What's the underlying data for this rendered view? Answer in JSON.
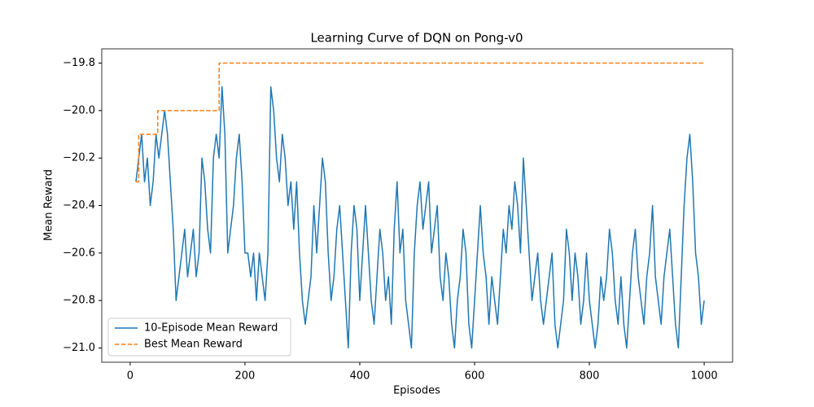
{
  "chart_data": {
    "type": "line",
    "title": "Learning Curve of DQN on Pong-v0",
    "x_label": "Episodes",
    "y_label": "Mean Reward",
    "xlim": [
      -49.5,
      1049.5
    ],
    "ylim": [
      -21.06,
      -19.74
    ],
    "xticks": [
      0,
      200,
      400,
      600,
      800,
      1000
    ],
    "yticks": [
      {
        "value": -21.0,
        "label": "−21.0"
      },
      {
        "value": -20.8,
        "label": "−20.8"
      },
      {
        "value": -20.6,
        "label": "−20.6"
      },
      {
        "value": -20.4,
        "label": "−20.4"
      },
      {
        "value": -20.2,
        "label": "−20.2"
      },
      {
        "value": -20.0,
        "label": "−20.0"
      },
      {
        "value": -19.8,
        "label": "−19.8"
      }
    ],
    "grid": false,
    "legend": "lower left",
    "series": [
      {
        "name": "10-Episode Mean Reward",
        "color": "#1f77b4",
        "dash": "solid",
        "x": [
          10,
          15,
          20,
          25,
          30,
          35,
          40,
          45,
          50,
          55,
          60,
          65,
          70,
          75,
          80,
          85,
          90,
          95,
          100,
          105,
          110,
          115,
          120,
          125,
          130,
          135,
          140,
          145,
          150,
          155,
          160,
          165,
          170,
          175,
          180,
          185,
          190,
          195,
          200,
          205,
          210,
          215,
          220,
          225,
          230,
          235,
          240,
          245,
          250,
          255,
          260,
          265,
          270,
          275,
          280,
          285,
          290,
          295,
          300,
          305,
          310,
          315,
          320,
          325,
          330,
          335,
          340,
          345,
          350,
          355,
          360,
          365,
          370,
          375,
          380,
          385,
          390,
          395,
          400,
          405,
          410,
          415,
          420,
          425,
          430,
          435,
          440,
          445,
          450,
          455,
          460,
          465,
          470,
          475,
          480,
          485,
          490,
          495,
          500,
          505,
          510,
          515,
          520,
          525,
          530,
          535,
          540,
          545,
          550,
          555,
          560,
          565,
          570,
          575,
          580,
          585,
          590,
          595,
          600,
          605,
          610,
          615,
          620,
          625,
          630,
          635,
          640,
          645,
          650,
          655,
          660,
          665,
          670,
          675,
          680,
          685,
          690,
          695,
          700,
          705,
          710,
          715,
          720,
          725,
          730,
          735,
          740,
          745,
          750,
          755,
          760,
          765,
          770,
          775,
          780,
          785,
          790,
          795,
          800,
          805,
          810,
          815,
          820,
          825,
          830,
          835,
          840,
          845,
          850,
          855,
          860,
          865,
          870,
          875,
          880,
          885,
          890,
          895,
          900,
          905,
          910,
          915,
          920,
          925,
          930,
          935,
          940,
          945,
          950,
          955,
          960,
          965,
          970,
          975,
          980,
          985,
          990,
          995,
          1000
        ],
        "values": [
          -20.3,
          -20.2,
          -20.1,
          -20.3,
          -20.2,
          -20.4,
          -20.3,
          -20.1,
          -20.2,
          -20.1,
          -20.0,
          -20.1,
          -20.3,
          -20.5,
          -20.8,
          -20.7,
          -20.6,
          -20.5,
          -20.7,
          -20.6,
          -20.5,
          -20.7,
          -20.6,
          -20.2,
          -20.3,
          -20.5,
          -20.6,
          -20.2,
          -20.1,
          -20.2,
          -19.9,
          -20.1,
          -20.6,
          -20.5,
          -20.4,
          -20.2,
          -20.1,
          -20.3,
          -20.6,
          -20.6,
          -20.7,
          -20.6,
          -20.8,
          -20.6,
          -20.7,
          -20.8,
          -20.6,
          -19.9,
          -20.0,
          -20.2,
          -20.3,
          -20.1,
          -20.2,
          -20.4,
          -20.3,
          -20.5,
          -20.3,
          -20.6,
          -20.8,
          -20.9,
          -20.8,
          -20.7,
          -20.4,
          -20.6,
          -20.4,
          -20.2,
          -20.3,
          -20.6,
          -20.8,
          -20.7,
          -20.5,
          -20.4,
          -20.6,
          -20.8,
          -21.0,
          -20.6,
          -20.4,
          -20.5,
          -20.8,
          -20.6,
          -20.4,
          -20.6,
          -20.8,
          -20.9,
          -20.7,
          -20.5,
          -20.6,
          -20.8,
          -20.7,
          -20.9,
          -20.5,
          -20.3,
          -20.6,
          -20.5,
          -20.8,
          -20.9,
          -21.0,
          -20.6,
          -20.4,
          -20.3,
          -20.5,
          -20.4,
          -20.3,
          -20.6,
          -20.5,
          -20.4,
          -20.7,
          -20.8,
          -20.6,
          -20.7,
          -20.9,
          -21.0,
          -20.8,
          -20.7,
          -20.5,
          -20.6,
          -20.9,
          -21.0,
          -20.8,
          -20.6,
          -20.4,
          -20.6,
          -20.7,
          -20.9,
          -20.7,
          -20.8,
          -20.9,
          -20.7,
          -20.5,
          -20.6,
          -20.4,
          -20.5,
          -20.3,
          -20.4,
          -20.6,
          -20.2,
          -20.4,
          -20.6,
          -20.8,
          -20.7,
          -20.6,
          -20.8,
          -20.9,
          -20.8,
          -20.7,
          -20.6,
          -20.9,
          -21.0,
          -20.9,
          -20.8,
          -20.5,
          -20.6,
          -20.8,
          -20.6,
          -20.7,
          -20.9,
          -20.8,
          -20.6,
          -20.8,
          -20.9,
          -21.0,
          -20.9,
          -20.7,
          -20.8,
          -20.7,
          -20.5,
          -20.6,
          -20.8,
          -20.9,
          -20.7,
          -20.9,
          -21.0,
          -20.8,
          -20.6,
          -20.5,
          -20.7,
          -20.8,
          -20.9,
          -20.7,
          -20.6,
          -20.4,
          -20.7,
          -20.8,
          -20.9,
          -20.7,
          -20.6,
          -20.5,
          -20.7,
          -20.9,
          -21.0,
          -20.7,
          -20.4,
          -20.2,
          -20.1,
          -20.3,
          -20.6,
          -20.7,
          -20.9,
          -20.8
        ]
      },
      {
        "name": "Best Mean Reward",
        "color": "#ff7f0e",
        "dash": "dashed",
        "x": [
          10,
          15,
          15,
          48,
          48,
          155,
          155,
          1000
        ],
        "values": [
          -20.3,
          -20.3,
          -20.1,
          -20.1,
          -20.0,
          -20.0,
          -19.8,
          -19.8
        ]
      }
    ]
  }
}
